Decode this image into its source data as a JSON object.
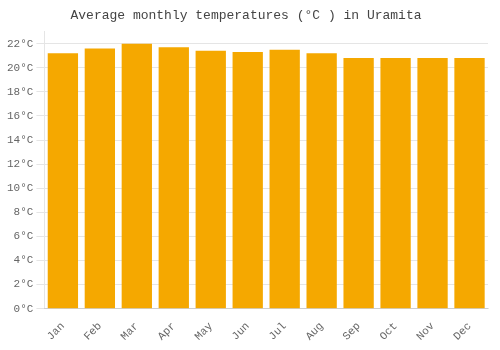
{
  "chart_data": {
    "type": "bar",
    "title": "Average monthly temperatures (°C ) in Uramita",
    "categories": [
      "Jan",
      "Feb",
      "Mar",
      "Apr",
      "May",
      "Jun",
      "Jul",
      "Aug",
      "Sep",
      "Oct",
      "Nov",
      "Dec"
    ],
    "values": [
      21.2,
      21.6,
      22.0,
      21.7,
      21.4,
      21.3,
      21.5,
      21.2,
      20.8,
      20.8,
      20.8,
      20.8
    ],
    "color": "#F5A800",
    "ylim": [
      0,
      23
    ],
    "yticks": [
      {
        "value": 0,
        "label": "0°C"
      },
      {
        "value": 2,
        "label": "2°C"
      },
      {
        "value": 4,
        "label": "4°C"
      },
      {
        "value": 6,
        "label": "6°C"
      },
      {
        "value": 8,
        "label": "8°C"
      },
      {
        "value": 10,
        "label": "10°C"
      },
      {
        "value": 12,
        "label": "12°C"
      },
      {
        "value": 14,
        "label": "14°C"
      },
      {
        "value": 16,
        "label": "16°C"
      },
      {
        "value": 18,
        "label": "18°C"
      },
      {
        "value": 20,
        "label": "20°C"
      },
      {
        "value": 22,
        "label": "22°C"
      }
    ],
    "grid": true
  }
}
